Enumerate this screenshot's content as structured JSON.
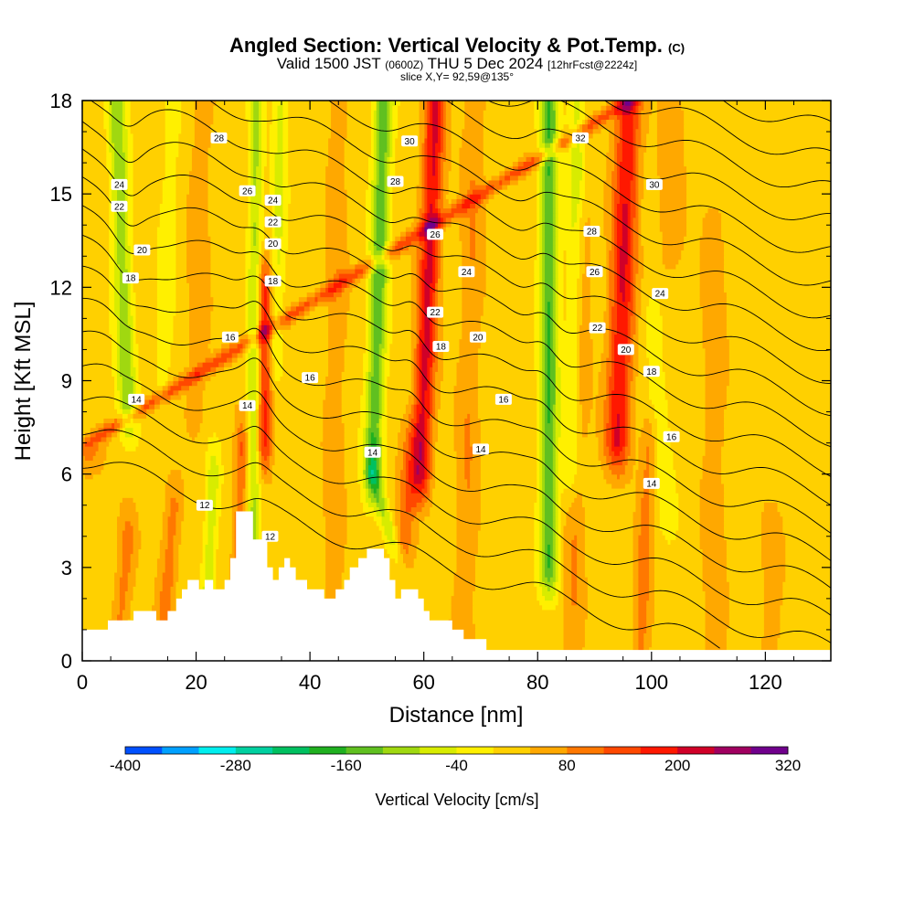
{
  "title": {
    "main": "Angled Section: Vertical Velocity & Pot.Temp.",
    "main_suffix": "(C)",
    "line2_a": "Valid 1500 JST",
    "line2_b": "(0600Z)",
    "line2_c": "THU 5 Dec 2024",
    "line2_d": "[12hrFcst@2224z]",
    "line3": "slice X,Y= 92,59@135°"
  },
  "chart_data": {
    "type": "heatmap",
    "xlabel": "Distance [nm]",
    "ylabel": "Height [Kft MSL]",
    "xlim": [
      0,
      131.5
    ],
    "ylim": [
      0,
      18
    ],
    "x_ticks": [
      "0",
      "20",
      "40",
      "60",
      "80",
      "100",
      "120"
    ],
    "y_ticks": [
      "0",
      "3",
      "6",
      "9",
      "12",
      "15",
      "18"
    ],
    "field": "Vertical Velocity",
    "colorbar": {
      "title": "Vertical Velocity [cm/s]",
      "tick_labels": [
        "-400",
        "-280",
        "-160",
        "-40",
        "80",
        "200",
        "320"
      ],
      "levels": [
        -400,
        -360,
        -320,
        -280,
        -240,
        -200,
        -160,
        -120,
        -80,
        -40,
        0,
        40,
        80,
        120,
        160,
        200,
        240,
        280,
        320
      ],
      "colors": [
        "#0000ff",
        "#0050ff",
        "#00a0ff",
        "#00eeee",
        "#00d0a0",
        "#00c060",
        "#20b020",
        "#60c020",
        "#a0d810",
        "#d8ec00",
        "#fff000",
        "#ffd000",
        "#ffa800",
        "#ff7800",
        "#ff4800",
        "#ff1800",
        "#d00028",
        "#a00060",
        "#70008c",
        "#4c0090"
      ]
    },
    "background_value": 20,
    "updraft_cores": [
      {
        "x0": 1,
        "x1": 96,
        "z0": 7,
        "z1": 18,
        "width": 2.3,
        "value": 110
      },
      {
        "x0": 32,
        "x1": 32,
        "z0": 7,
        "z1": 12,
        "width": 1.3,
        "value": 160
      },
      {
        "x0": 27.5,
        "x1": 28,
        "z0": 3,
        "z1": 7,
        "width": 1.2,
        "value": 100
      },
      {
        "x0": 59.5,
        "x1": 62,
        "z0": 6,
        "z1": 18,
        "width": 1.8,
        "value": 190
      },
      {
        "x0": 56,
        "x1": 58,
        "z0": 3,
        "z1": 7,
        "width": 1.8,
        "value": 85
      },
      {
        "x0": 94,
        "x1": 96,
        "z0": 7,
        "z1": 18,
        "width": 2.2,
        "value": 180
      },
      {
        "x0": 98,
        "x1": 99.5,
        "z0": 0,
        "z1": 7,
        "width": 1.5,
        "value": 75
      },
      {
        "x0": 14,
        "x1": 16,
        "z0": 0,
        "z1": 5,
        "width": 1.6,
        "value": 80
      },
      {
        "x0": 6,
        "x1": 8,
        "z0": 0,
        "z1": 4,
        "width": 1.6,
        "value": 75
      },
      {
        "x0": 44,
        "x1": 45,
        "z0": 2,
        "z1": 18,
        "width": 1.8,
        "value": 50
      },
      {
        "x0": 67,
        "x1": 69,
        "z0": 0,
        "z1": 18,
        "width": 2.0,
        "value": 55
      },
      {
        "x0": 86,
        "x1": 88,
        "z0": 0,
        "z1": 14,
        "width": 1.8,
        "value": 55
      },
      {
        "x0": 111,
        "x1": 111,
        "z0": 0,
        "z1": 14,
        "width": 2.0,
        "value": 50
      },
      {
        "x0": 121,
        "x1": 121,
        "z0": 0,
        "z1": 4,
        "width": 2.0,
        "value": 45
      },
      {
        "x0": 20,
        "x1": 21,
        "z0": 8,
        "z1": 18,
        "width": 2.0,
        "value": 45
      },
      {
        "x0": 103,
        "x1": 104,
        "z0": 13,
        "z1": 18,
        "width": 2.5,
        "value": 40
      }
    ],
    "downdraft_cores": [
      {
        "x0": 6,
        "x1": 8,
        "z0": 18,
        "z1": 8,
        "width": 1.6,
        "value": -130
      },
      {
        "x0": 16,
        "x1": 14,
        "z0": 18,
        "z1": 9,
        "width": 1.4,
        "value": -50
      },
      {
        "x0": 30.5,
        "x1": 30,
        "z0": 18,
        "z1": 3,
        "width": 1.2,
        "value": -110
      },
      {
        "x0": 23,
        "x1": 22,
        "z0": 6,
        "z1": 2,
        "width": 1.2,
        "value": -90
      },
      {
        "x0": 35,
        "x1": 34,
        "z0": 18,
        "z1": 10,
        "width": 1.3,
        "value": -70
      },
      {
        "x0": 53,
        "x1": 51,
        "z0": 18,
        "z1": 6,
        "width": 1.6,
        "value": -170
      },
      {
        "x0": 51,
        "x1": 56,
        "z0": 6,
        "z1": 3,
        "width": 1.2,
        "value": -90
      },
      {
        "x0": 82,
        "x1": 82,
        "z0": 18,
        "z1": 3,
        "width": 1.6,
        "value": -180
      },
      {
        "x0": 87,
        "x1": 86,
        "z0": 18,
        "z1": 6,
        "width": 1.5,
        "value": -80
      },
      {
        "x0": 100,
        "x1": 103,
        "z0": 11,
        "z1": 5,
        "width": 1.8,
        "value": -50
      }
    ],
    "terrain": [
      {
        "x": 0,
        "z": 1.0
      },
      {
        "x": 4.5,
        "z": 1.0
      },
      {
        "x": 4.5,
        "z": 1.3
      },
      {
        "x": 9,
        "z": 1.3
      },
      {
        "x": 9,
        "z": 1.6
      },
      {
        "x": 13,
        "z": 1.6
      },
      {
        "x": 13,
        "z": 1.3
      },
      {
        "x": 15,
        "z": 1.3
      },
      {
        "x": 15,
        "z": 1.6
      },
      {
        "x": 16.5,
        "z": 1.6
      },
      {
        "x": 16.5,
        "z": 2.0
      },
      {
        "x": 17.5,
        "z": 2.0
      },
      {
        "x": 17.5,
        "z": 2.3
      },
      {
        "x": 18.5,
        "z": 2.3
      },
      {
        "x": 18.5,
        "z": 2.6
      },
      {
        "x": 20.5,
        "z": 2.6
      },
      {
        "x": 20.5,
        "z": 2.3
      },
      {
        "x": 21.5,
        "z": 2.3
      },
      {
        "x": 21.5,
        "z": 2.6
      },
      {
        "x": 23,
        "z": 2.6
      },
      {
        "x": 23,
        "z": 2.3
      },
      {
        "x": 25,
        "z": 2.3
      },
      {
        "x": 25,
        "z": 2.6
      },
      {
        "x": 26,
        "z": 2.6
      },
      {
        "x": 26,
        "z": 3.3
      },
      {
        "x": 27,
        "z": 3.3
      },
      {
        "x": 27,
        "z": 4.8
      },
      {
        "x": 30,
        "z": 4.8
      },
      {
        "x": 30,
        "z": 3.9
      },
      {
        "x": 32.5,
        "z": 3.9
      },
      {
        "x": 32.5,
        "z": 3.0
      },
      {
        "x": 33.5,
        "z": 3.0
      },
      {
        "x": 33.5,
        "z": 2.6
      },
      {
        "x": 34.5,
        "z": 2.6
      },
      {
        "x": 34.5,
        "z": 3.0
      },
      {
        "x": 35.5,
        "z": 3.0
      },
      {
        "x": 35.5,
        "z": 3.3
      },
      {
        "x": 36.5,
        "z": 3.3
      },
      {
        "x": 36.5,
        "z": 3.0
      },
      {
        "x": 37.5,
        "z": 3.0
      },
      {
        "x": 37.5,
        "z": 2.6
      },
      {
        "x": 39.5,
        "z": 2.6
      },
      {
        "x": 39.5,
        "z": 2.3
      },
      {
        "x": 42.5,
        "z": 2.3
      },
      {
        "x": 42.5,
        "z": 2.0
      },
      {
        "x": 44.5,
        "z": 2.0
      },
      {
        "x": 44.5,
        "z": 2.3
      },
      {
        "x": 46,
        "z": 2.3
      },
      {
        "x": 46,
        "z": 2.6
      },
      {
        "x": 47,
        "z": 2.6
      },
      {
        "x": 47,
        "z": 3.0
      },
      {
        "x": 48.5,
        "z": 3.0
      },
      {
        "x": 48.5,
        "z": 3.3
      },
      {
        "x": 50,
        "z": 3.3
      },
      {
        "x": 50,
        "z": 3.6
      },
      {
        "x": 53,
        "z": 3.6
      },
      {
        "x": 53,
        "z": 3.3
      },
      {
        "x": 54,
        "z": 3.3
      },
      {
        "x": 54,
        "z": 2.6
      },
      {
        "x": 55,
        "z": 2.6
      },
      {
        "x": 55,
        "z": 2.0
      },
      {
        "x": 56,
        "z": 2.0
      },
      {
        "x": 56,
        "z": 2.3
      },
      {
        "x": 59,
        "z": 2.3
      },
      {
        "x": 59,
        "z": 2.0
      },
      {
        "x": 60,
        "z": 2.0
      },
      {
        "x": 60,
        "z": 1.6
      },
      {
        "x": 61,
        "z": 1.6
      },
      {
        "x": 61,
        "z": 1.3
      },
      {
        "x": 65,
        "z": 1.3
      },
      {
        "x": 65,
        "z": 1.0
      },
      {
        "x": 67,
        "z": 1.0
      },
      {
        "x": 67,
        "z": 0.7
      },
      {
        "x": 71,
        "z": 0.7
      },
      {
        "x": 71,
        "z": 0.35
      },
      {
        "x": 131.5,
        "z": 0.35
      }
    ],
    "potential_temperature": {
      "levels": [
        7,
        8,
        9,
        10,
        11,
        12,
        13,
        14,
        15,
        16,
        17,
        18,
        19,
        20,
        21,
        22,
        23,
        24,
        25,
        26,
        27,
        28,
        29,
        30,
        31,
        32,
        33,
        34,
        35
      ],
      "line_color": "#000000",
      "labels": [
        {
          "text": "24",
          "x": 6.5,
          "z": 15.3
        },
        {
          "text": "22",
          "x": 6.5,
          "z": 14.6
        },
        {
          "text": "20",
          "x": 10.5,
          "z": 13.2
        },
        {
          "text": "18",
          "x": 8.5,
          "z": 12.3
        },
        {
          "text": "14",
          "x": 9.5,
          "z": 8.4
        },
        {
          "text": "28",
          "x": 24,
          "z": 16.8
        },
        {
          "text": "26",
          "x": 29,
          "z": 15.1
        },
        {
          "text": "24",
          "x": 33.5,
          "z": 14.8
        },
        {
          "text": "22",
          "x": 33.5,
          "z": 14.1
        },
        {
          "text": "20",
          "x": 33.5,
          "z": 13.4
        },
        {
          "text": "18",
          "x": 33.5,
          "z": 12.2
        },
        {
          "text": "16",
          "x": 26,
          "z": 10.4
        },
        {
          "text": "14",
          "x": 29,
          "z": 8.2
        },
        {
          "text": "12",
          "x": 21.5,
          "z": 5.0
        },
        {
          "text": "12",
          "x": 33,
          "z": 4.0
        },
        {
          "text": "16",
          "x": 40,
          "z": 9.1
        },
        {
          "text": "14",
          "x": 51,
          "z": 6.7
        },
        {
          "text": "30",
          "x": 57.5,
          "z": 16.7
        },
        {
          "text": "28",
          "x": 55,
          "z": 15.4
        },
        {
          "text": "26",
          "x": 62,
          "z": 13.7
        },
        {
          "text": "24",
          "x": 67.5,
          "z": 12.5
        },
        {
          "text": "22",
          "x": 62,
          "z": 11.2
        },
        {
          "text": "20",
          "x": 69.5,
          "z": 10.4
        },
        {
          "text": "18",
          "x": 63,
          "z": 10.1
        },
        {
          "text": "16",
          "x": 74,
          "z": 8.4
        },
        {
          "text": "14",
          "x": 70,
          "z": 6.8
        },
        {
          "text": "32",
          "x": 87.5,
          "z": 16.8
        },
        {
          "text": "30",
          "x": 100.5,
          "z": 15.3
        },
        {
          "text": "28",
          "x": 89.5,
          "z": 13.8
        },
        {
          "text": "26",
          "x": 90,
          "z": 12.5
        },
        {
          "text": "24",
          "x": 101.5,
          "z": 11.8
        },
        {
          "text": "22",
          "x": 90.5,
          "z": 10.7
        },
        {
          "text": "20",
          "x": 95.5,
          "z": 10.0
        },
        {
          "text": "18",
          "x": 100,
          "z": 9.3
        },
        {
          "text": "16",
          "x": 103.5,
          "z": 7.2
        },
        {
          "text": "14",
          "x": 100,
          "z": 5.7
        }
      ]
    }
  }
}
